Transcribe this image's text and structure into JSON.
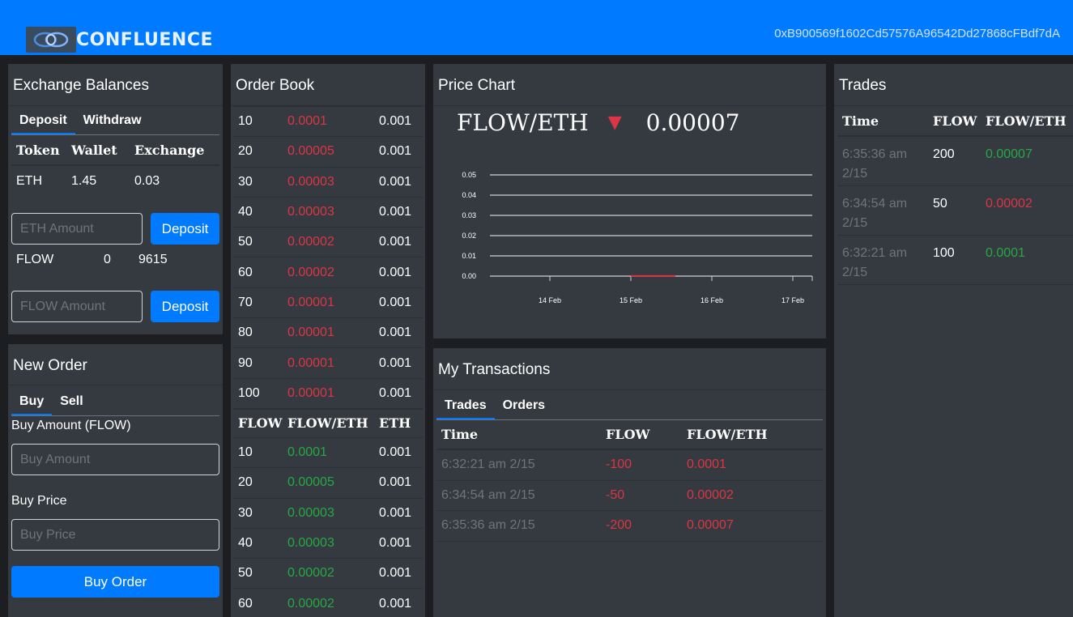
{
  "header": {
    "app_name": "CONFLUENCE",
    "account": "0xB900569f1602Cd57576A96542Dd27868cFBdf7dA"
  },
  "balances": {
    "title": "Exchange Balances",
    "tabs": [
      "Deposit",
      "Withdraw"
    ],
    "columns": [
      "Token",
      "Wallet",
      "Exchange"
    ],
    "eth": {
      "token": "ETH",
      "wallet": "1.45",
      "exchange": "0.03"
    },
    "eth_placeholder": "ETH Amount",
    "eth_button": "Deposit",
    "flow": {
      "token": "FLOW",
      "wallet": "0",
      "exchange": "9615"
    },
    "flow_placeholder": "FLOW Amount",
    "flow_button": "Deposit"
  },
  "new_order": {
    "title": "New Order",
    "tabs": [
      "Buy",
      "Sell"
    ],
    "amount_label": "Buy Amount (FLOW)",
    "amount_placeholder": "Buy Amount",
    "price_label": "Buy Price",
    "price_placeholder": "Buy Price",
    "submit": "Buy Order"
  },
  "order_book": {
    "title": "Order Book",
    "sell_orders": [
      [
        "10",
        "0.0001",
        "0.001"
      ],
      [
        "20",
        "0.00005",
        "0.001"
      ],
      [
        "30",
        "0.00003",
        "0.001"
      ],
      [
        "40",
        "0.00003",
        "0.001"
      ],
      [
        "50",
        "0.00002",
        "0.001"
      ],
      [
        "60",
        "0.00002",
        "0.001"
      ],
      [
        "70",
        "0.00001",
        "0.001"
      ],
      [
        "80",
        "0.00001",
        "0.001"
      ],
      [
        "90",
        "0.00001",
        "0.001"
      ],
      [
        "100",
        "0.00001",
        "0.001"
      ]
    ],
    "columns": [
      "FLOW",
      "FLOW/ETH",
      "ETH"
    ],
    "buy_orders": [
      [
        "10",
        "0.0001",
        "0.001"
      ],
      [
        "20",
        "0.00005",
        "0.001"
      ],
      [
        "30",
        "0.00003",
        "0.001"
      ],
      [
        "40",
        "0.00003",
        "0.001"
      ],
      [
        "50",
        "0.00002",
        "0.001"
      ],
      [
        "60",
        "0.00002",
        "0.001"
      ]
    ]
  },
  "price_chart": {
    "title": "Price Chart",
    "pair": "FLOW/ETH",
    "arrow": "▼",
    "price": "0.00007"
  },
  "chart_data": {
    "type": "line",
    "categories": [
      "14 Feb",
      "15 Feb",
      "16 Feb",
      "17 Feb"
    ],
    "y_ticks": [
      "0.05",
      "0.04",
      "0.03",
      "0.02",
      "0.01",
      "0.00"
    ],
    "ylim": [
      0,
      0.05
    ],
    "grid": true,
    "series": [
      {
        "x": [
          15.0,
          15.55
        ],
        "values": [
          7e-05,
          7e-05
        ],
        "color": "#dc3545"
      }
    ]
  },
  "my_transactions": {
    "title": "My Transactions",
    "tabs": [
      "Trades",
      "Orders"
    ],
    "columns": [
      "Time",
      "FLOW",
      "FLOW/ETH"
    ],
    "rows": [
      [
        "6:32:21 am 2/15",
        "-100",
        "0.0001"
      ],
      [
        "6:34:54 am 2/15",
        "-50",
        "0.00002"
      ],
      [
        "6:35:36 am 2/15",
        "-200",
        "0.00007"
      ]
    ]
  },
  "trades": {
    "title": "Trades",
    "columns": [
      "Time",
      "FLOW",
      "FLOW/ETH"
    ],
    "rows": [
      {
        "time1": "6:35:36 am",
        "time2": "2/15",
        "flow": "200",
        "price": "0.00007",
        "color": "green"
      },
      {
        "time1": "6:34:54 am",
        "time2": "2/15",
        "flow": "50",
        "price": "0.00002",
        "color": "red"
      },
      {
        "time1": "6:32:21 am",
        "time2": "2/15",
        "flow": "100",
        "price": "0.0001",
        "color": "green"
      }
    ]
  },
  "colors": {
    "brand": "#007bff",
    "card": "#343a40",
    "background": "#1d1e22",
    "sell": "#dc3545",
    "buy": "#28a745"
  }
}
